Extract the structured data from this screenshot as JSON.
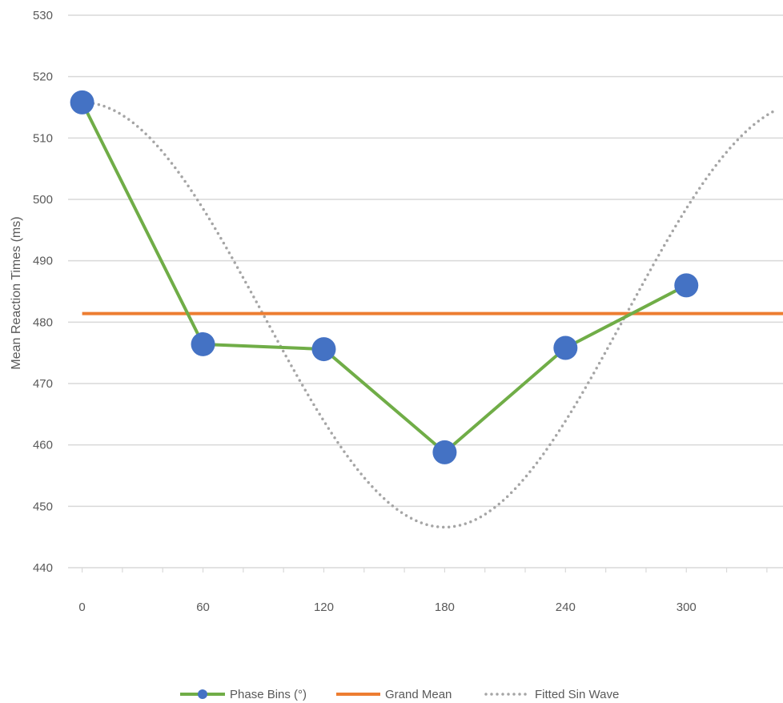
{
  "chart_data": {
    "type": "line",
    "title": "",
    "xlabel": "",
    "ylabel": "Mean Reaction Times (ms)",
    "x_ticks": [
      0,
      60,
      120,
      180,
      240,
      300
    ],
    "y_ticks": [
      440,
      450,
      460,
      470,
      480,
      490,
      500,
      510,
      520,
      530
    ],
    "xlim": [
      -7,
      348
    ],
    "ylim": [
      440,
      530
    ],
    "grid": true,
    "legend_position": "bottom",
    "series": [
      {
        "name": "Phase Bins (°)",
        "style": "line-with-markers",
        "color": "#70AD47",
        "marker_color": "#4472C4",
        "x": [
          0,
          60,
          120,
          180,
          240,
          300
        ],
        "y": [
          515.8,
          476.4,
          475.6,
          458.8,
          475.8,
          486.0
        ]
      },
      {
        "name": "Grand Mean",
        "style": "line",
        "color": "#ED7D31",
        "x": [
          0,
          348
        ],
        "y": [
          481.4,
          481.4
        ]
      },
      {
        "name": "Fitted Sin Wave",
        "style": "dotted",
        "color": "#A5A5A5",
        "fit": {
          "mean": 481.2,
          "amplitude": 34.6,
          "peak_phase_deg": 0,
          "x_start": 0,
          "x_end": 345
        }
      }
    ]
  }
}
